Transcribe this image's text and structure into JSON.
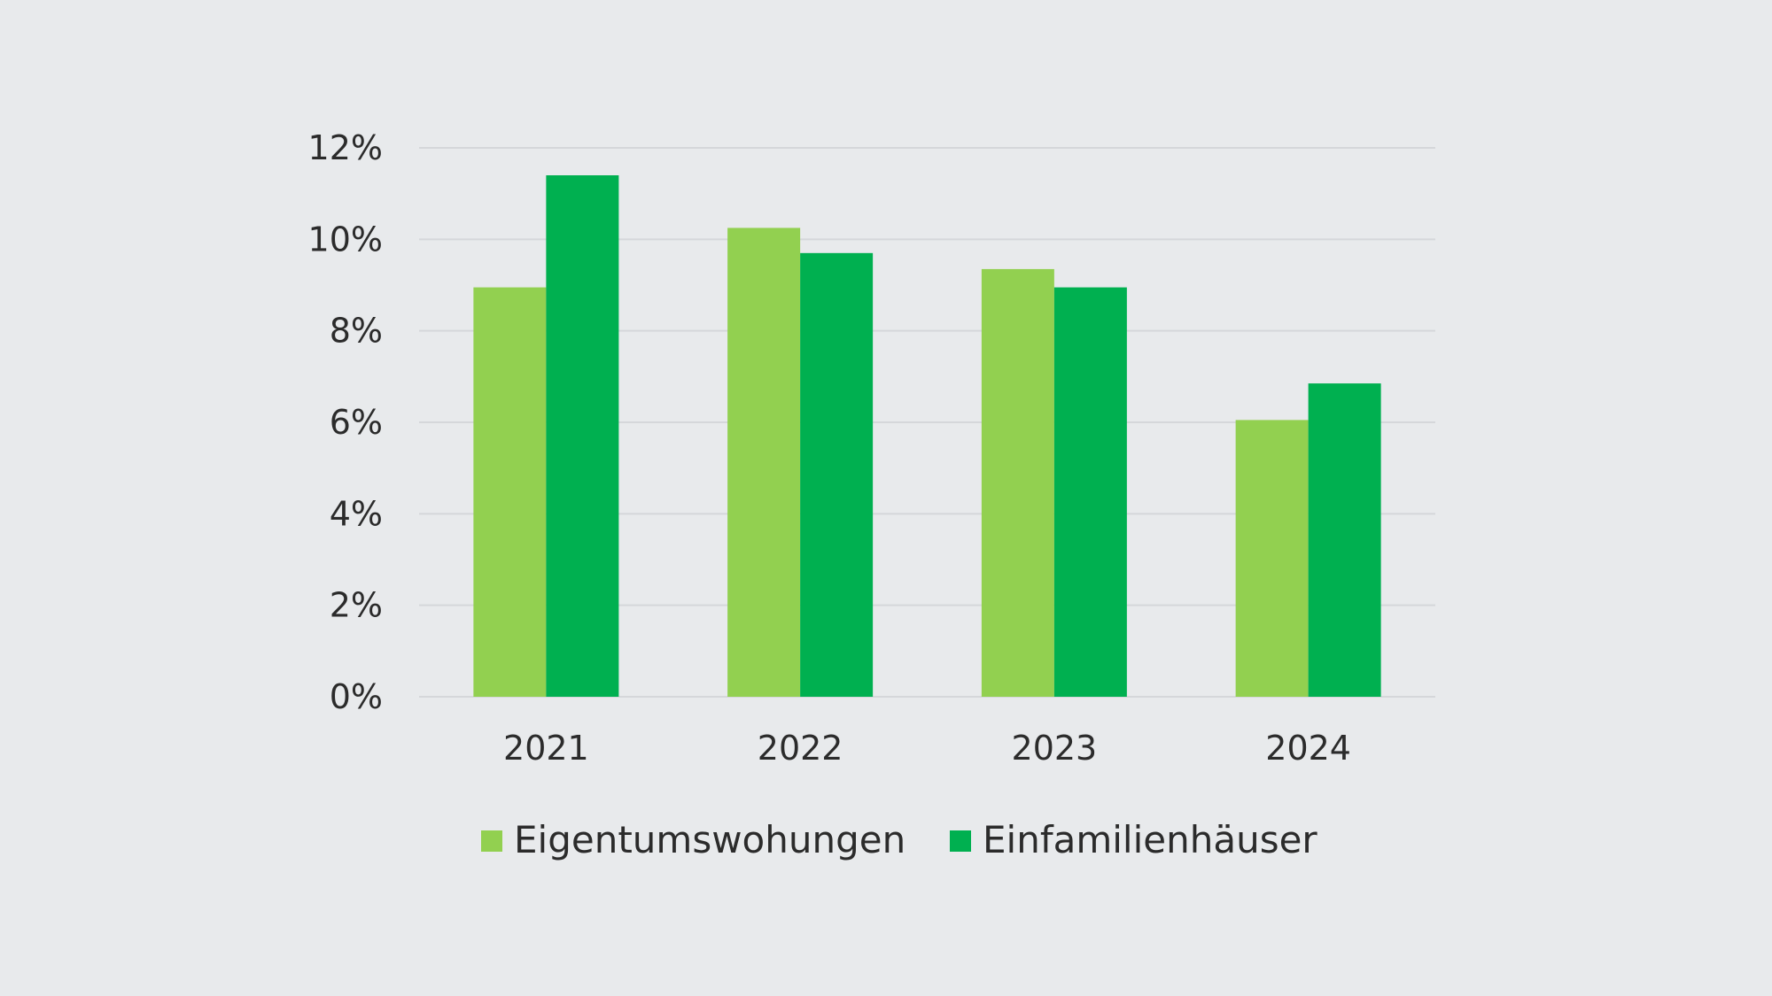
{
  "chart_data": {
    "type": "bar",
    "title": "",
    "xlabel": "",
    "ylabel": "",
    "categories": [
      "2021",
      "2022",
      "2023",
      "2024"
    ],
    "series": [
      {
        "name": "Eigentumswohungen",
        "color": "#92d050",
        "values": [
          8.95,
          10.25,
          9.35,
          6.05
        ]
      },
      {
        "name": "Einfamilienhäuser",
        "color": "#00b050",
        "values": [
          11.4,
          9.7,
          8.95,
          6.85
        ]
      }
    ],
    "ylim": [
      0,
      12
    ],
    "yticks": [
      0,
      2,
      4,
      6,
      8,
      10,
      12
    ],
    "ytick_labels": [
      "0%",
      "2%",
      "4%",
      "6%",
      "8%",
      "10%",
      "12%"
    ],
    "grid": true,
    "legend": "bottom-center",
    "colors": {
      "background": "#e8eaec",
      "grid": "#d5d7da",
      "text": "#2b2b2b"
    }
  }
}
